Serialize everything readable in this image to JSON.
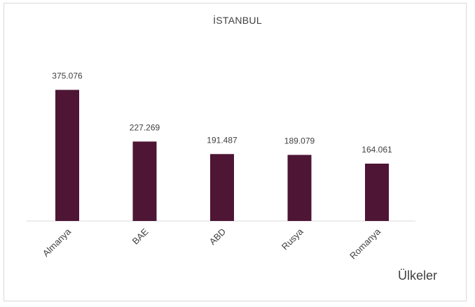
{
  "chart_data": {
    "type": "bar",
    "title": "İSTANBUL",
    "xlabel": "Ülkeler",
    "ylabel": "",
    "categories": [
      "Almanya",
      "BAE",
      "ABD",
      "Rusya",
      "Romanya"
    ],
    "values": [
      375076,
      227269,
      191487,
      189079,
      164061
    ],
    "value_labels": [
      "375.076",
      "227.269",
      "191.487",
      "189.079",
      "164.061"
    ],
    "ylim": [
      0,
      400000
    ],
    "grid": false,
    "legend": "none",
    "bar_color": "#4e1535"
  }
}
